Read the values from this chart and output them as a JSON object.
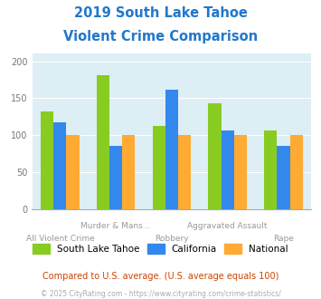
{
  "title_line1": "2019 South Lake Tahoe",
  "title_line2": "Violent Crime Comparison",
  "title_color": "#2277cc",
  "categories": [
    "All Violent Crime",
    "Murder & Mans...",
    "Robbery",
    "Aggravated Assault",
    "Rape"
  ],
  "slt_values": [
    132,
    181,
    112,
    143,
    106
  ],
  "ca_values": [
    118,
    86,
    162,
    107,
    86
  ],
  "nat_values": [
    100,
    100,
    100,
    100,
    100
  ],
  "slt_color": "#88cc22",
  "ca_color": "#3388ee",
  "nat_color": "#ffaa33",
  "ylim": [
    0,
    210
  ],
  "yticks": [
    0,
    50,
    100,
    150,
    200
  ],
  "legend_labels": [
    "South Lake Tahoe",
    "California",
    "National"
  ],
  "note": "Compared to U.S. average. (U.S. average equals 100)",
  "note_color": "#cc4400",
  "footer": "© 2025 CityRating.com - https://www.cityrating.com/crime-statistics/",
  "footer_color": "#aaaaaa",
  "plot_bg": "#ddeef5",
  "top_labels": [
    "",
    "Murder & Mans...",
    "",
    "Aggravated Assault",
    ""
  ],
  "bot_labels": [
    "All Violent Crime",
    "",
    "Robbery",
    "",
    "Rape"
  ]
}
